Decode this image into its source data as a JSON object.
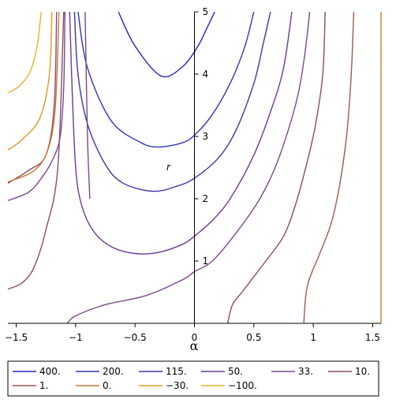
{
  "chart_data": {
    "type": "line",
    "title": "",
    "xlabel": "α",
    "ylabel": "r",
    "xlim": [
      -1.57,
      1.57
    ],
    "ylim": [
      0,
      5
    ],
    "x_ticks": [
      "−1.5",
      "−1",
      "−0.5",
      "0",
      "0.5",
      "1",
      "1.5"
    ],
    "x_tick_values": [
      -1.5,
      -1,
      -0.5,
      0,
      0.5,
      1,
      1.5
    ],
    "y_ticks": [
      "1",
      "2",
      "3",
      "4",
      "5"
    ],
    "y_tick_values": [
      1,
      2,
      3,
      4,
      5
    ],
    "grid": false,
    "legend_position": "bottom",
    "series": [
      {
        "name": "400.",
        "color": "#2222cc",
        "segments": [
          [
            [
              -0.64,
              5
            ],
            [
              -0.5,
              4.45
            ],
            [
              -0.28,
              3.97
            ],
            [
              -0.1,
              4.12
            ],
            [
              0.03,
              4.45
            ],
            [
              0.1,
              4.72
            ],
            [
              0.17,
              5
            ]
          ]
        ]
      },
      {
        "name": "200.",
        "color": "#3333bb",
        "segments": [
          [
            [
              -0.98,
              5
            ],
            [
              -0.9,
              4.1
            ],
            [
              -0.7,
              3.25
            ],
            [
              -0.45,
              2.9
            ],
            [
              -0.3,
              2.83
            ],
            [
              -0.1,
              2.9
            ],
            [
              0,
              3.02
            ],
            [
              0.15,
              3.35
            ],
            [
              0.3,
              3.85
            ],
            [
              0.42,
              4.42
            ],
            [
              0.5,
              5
            ]
          ]
        ]
      },
      {
        "name": "115.",
        "color": "#4433aa",
        "segments": [
          [
            [
              -1.01,
              5
            ],
            [
              -0.98,
              4.0
            ],
            [
              -0.9,
              3.2
            ],
            [
              -0.75,
              2.55
            ],
            [
              -0.6,
              2.25
            ],
            [
              -0.35,
              2.12
            ],
            [
              -0.15,
              2.2
            ],
            [
              0,
              2.33
            ],
            [
              0.2,
              2.65
            ],
            [
              0.35,
              3.1
            ],
            [
              0.5,
              3.85
            ],
            [
              0.58,
              4.5
            ],
            [
              0.64,
              5
            ]
          ]
        ]
      },
      {
        "name": "50.",
        "color": "#6a3a9a",
        "segments": [
          [
            [
              -1.05,
              5
            ],
            [
              -1.03,
              3.8
            ],
            [
              -1.0,
              2.5
            ],
            [
              -0.95,
              1.9
            ],
            [
              -0.85,
              1.48
            ],
            [
              -0.7,
              1.23
            ],
            [
              -0.5,
              1.12
            ],
            [
              -0.3,
              1.14
            ],
            [
              -0.1,
              1.27
            ],
            [
              0,
              1.4
            ],
            [
              0.15,
              1.65
            ],
            [
              0.3,
              2.0
            ],
            [
              0.5,
              2.7
            ],
            [
              0.65,
              3.45
            ],
            [
              0.75,
              4.1
            ],
            [
              0.82,
              5
            ]
          ]
        ]
      },
      {
        "name": "33.",
        "color": "#7a4a8a",
        "segments": [
          [
            [
              -1.09,
              5
            ],
            [
              -1.1,
              3.8
            ],
            [
              -1.13,
              3.0
            ],
            [
              -1.2,
              2.6
            ],
            [
              -1.3,
              2.3
            ],
            [
              -1.4,
              2.1
            ],
            [
              -1.57,
              1.97
            ]
          ],
          [
            [
              -0.92,
              5
            ],
            [
              -0.9,
              3.0
            ],
            [
              -0.88,
              2.0
            ]
          ],
          [
            [
              -1.07,
              0
            ],
            [
              -1.0,
              0.12
            ],
            [
              -0.75,
              0.3
            ],
            [
              -0.4,
              0.45
            ],
            [
              -0.1,
              0.7
            ],
            [
              0,
              0.83
            ],
            [
              0.15,
              1.0
            ],
            [
              0.35,
              1.45
            ],
            [
              0.55,
              2.0
            ],
            [
              0.7,
              2.6
            ],
            [
              0.85,
              3.5
            ],
            [
              0.92,
              4.2
            ],
            [
              0.97,
              5
            ]
          ]
        ]
      },
      {
        "name": "10.",
        "color": "#8a4a6a",
        "segments": [
          [
            [
              -1.16,
              5
            ],
            [
              -1.18,
              3.5
            ],
            [
              -1.25,
              2.7
            ],
            [
              -1.4,
              2.45
            ],
            [
              -1.57,
              2.25
            ]
          ],
          [
            [
              -1.1,
              5
            ],
            [
              -1.15,
              2.5
            ],
            [
              -1.25,
              1.5
            ],
            [
              -1.35,
              0.9
            ],
            [
              -1.45,
              0.65
            ],
            [
              -1.57,
              0.55
            ]
          ],
          [
            [
              0.28,
              0
            ],
            [
              0.32,
              0.3
            ],
            [
              0.4,
              0.5
            ],
            [
              0.5,
              0.75
            ],
            [
              0.6,
              1.0
            ],
            [
              0.75,
              1.4
            ],
            [
              0.85,
              1.9
            ],
            [
              0.95,
              2.6
            ],
            [
              1.02,
              3.2
            ],
            [
              1.08,
              4.0
            ],
            [
              1.1,
              5
            ]
          ]
        ]
      },
      {
        "name": "1.",
        "color": "#a05a50",
        "segments": [
          [
            [
              0.92,
              0
            ],
            [
              0.95,
              0.6
            ],
            [
              1.05,
              1.1
            ],
            [
              1.15,
              1.6
            ],
            [
              1.22,
              2.2
            ],
            [
              1.28,
              3.0
            ],
            [
              1.32,
              4.0
            ],
            [
              1.34,
              5
            ]
          ]
        ]
      },
      {
        "name": "0.",
        "color": "#cc7a30",
        "segments": [
          [
            [
              -1.14,
              5
            ],
            [
              -1.17,
              3.5
            ],
            [
              -1.23,
              2.8
            ],
            [
              -1.35,
              2.45
            ],
            [
              -1.57,
              2.27
            ]
          ],
          [
            [
              1.57,
              0
            ],
            [
              1.57,
              5
            ]
          ]
        ]
      },
      {
        "name": "−30.",
        "color": "#e09a20",
        "segments": [
          [
            [
              -1.2,
              5
            ],
            [
              -1.22,
              4.0
            ],
            [
              -1.3,
              3.3
            ],
            [
              -1.45,
              2.95
            ],
            [
              -1.57,
              2.78
            ]
          ]
        ]
      },
      {
        "name": "−100.",
        "color": "#f0b020",
        "segments": [
          [
            [
              -1.29,
              5
            ],
            [
              -1.32,
              4.5
            ],
            [
              -1.38,
              4.05
            ],
            [
              -1.48,
              3.8
            ],
            [
              -1.57,
              3.7
            ]
          ]
        ]
      }
    ]
  }
}
